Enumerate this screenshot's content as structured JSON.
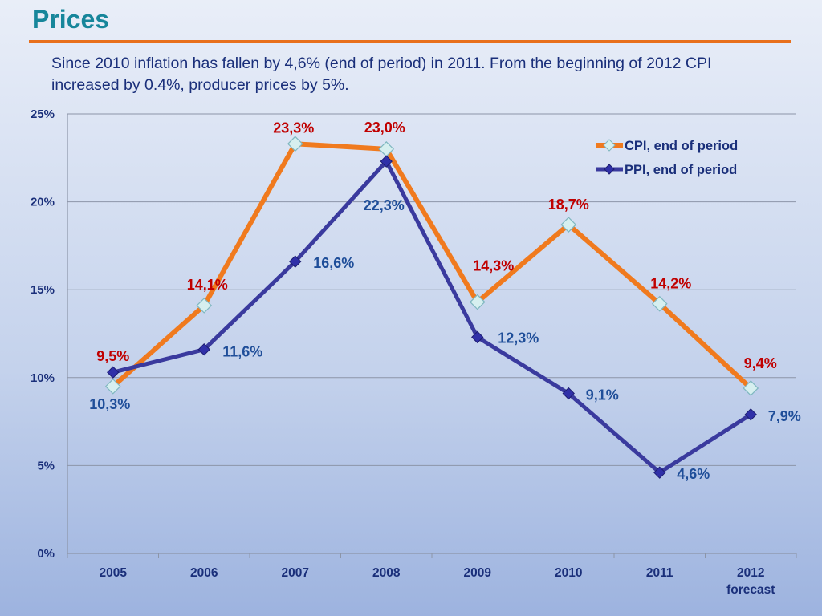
{
  "header": {
    "title": "Prices",
    "description": "Since 2010  inflation has fallen by  4,6% (end of period) in 2011. From the beginning of 2012 CPI increased by 0.4%, producer prices  by 5%."
  },
  "colors": {
    "title": "#17869b",
    "rule": "#e8701c",
    "cpi_line": "#f07a1e",
    "cpi_marker": "#d6efef",
    "cpi_label": "#c00000",
    "ppi_line": "#3a3a9e",
    "ppi_label": "#1f4e99",
    "axis_text": "#1a2f7a"
  },
  "chart_data": {
    "type": "line",
    "categories": [
      "2005",
      "2006",
      "2007",
      "2008",
      "2009",
      "2010",
      "2011",
      "2012\nforecast"
    ],
    "ylim": [
      0,
      25
    ],
    "y_ticks": [
      "0%",
      "5%",
      "10%",
      "15%",
      "20%",
      "25%"
    ],
    "grid": true,
    "legend_position": "top-right",
    "series": [
      {
        "name": "CPI, end of period",
        "values": [
          9.5,
          14.1,
          23.3,
          23.0,
          14.3,
          18.7,
          14.2,
          9.4
        ],
        "labels": [
          "9,5%",
          "14,1%",
          "23,3%",
          "23,0%",
          "14,3%",
          "18,7%",
          "14,2%",
          "9,4%"
        ]
      },
      {
        "name": "PPI, end of period",
        "values": [
          10.3,
          11.6,
          16.6,
          22.3,
          12.3,
          9.1,
          4.6,
          7.9
        ],
        "labels": [
          "10,3%",
          "11,6%",
          "16,6%",
          "22,3%",
          "12,3%",
          "9,1%",
          "4,6%",
          "7,9%"
        ]
      }
    ]
  }
}
